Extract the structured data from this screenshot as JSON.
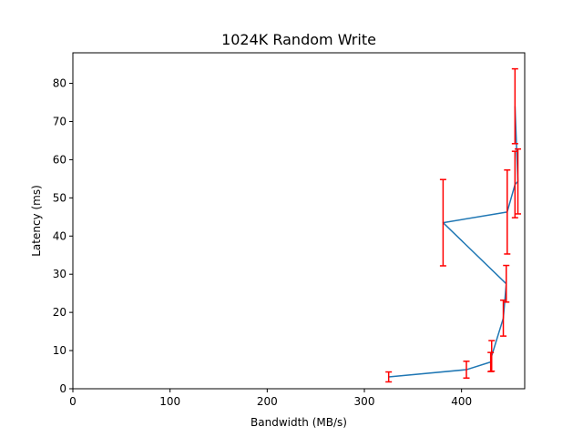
{
  "chart_data": {
    "type": "line",
    "title": "1024K  Random Write",
    "xlabel": "Bandwidth (MB/s)",
    "ylabel": "Latency (ms)",
    "xlim": [
      0,
      465
    ],
    "ylim": [
      0,
      88
    ],
    "xticks": [
      0,
      100,
      200,
      300,
      400
    ],
    "yticks": [
      0,
      10,
      20,
      30,
      40,
      50,
      60,
      70,
      80
    ],
    "grid": false,
    "colors": {
      "line": "#1f77b4",
      "error_bars": "#ff0000"
    },
    "series": [
      {
        "points": [
          {
            "x": 325,
            "y": 3.1,
            "yerr": 1.3
          },
          {
            "x": 405,
            "y": 5.0,
            "yerr": 2.2
          },
          {
            "x": 430,
            "y": 7.0,
            "yerr": 2.5
          },
          {
            "x": 431,
            "y": 8.6,
            "yerr": 4.0
          },
          {
            "x": 443,
            "y": 18.5,
            "yerr": 4.7
          },
          {
            "x": 446,
            "y": 27.5,
            "yerr": 4.8
          },
          {
            "x": 381,
            "y": 43.5,
            "yerr": 11.3
          },
          {
            "x": 447,
            "y": 46.3,
            "yerr": 11.0
          },
          {
            "x": 455,
            "y": 53.5,
            "yerr": 8.7
          },
          {
            "x": 458,
            "y": 54.3,
            "yerr": 8.5
          },
          {
            "x": 455,
            "y": 74.0,
            "yerr": 9.8
          }
        ]
      }
    ]
  }
}
